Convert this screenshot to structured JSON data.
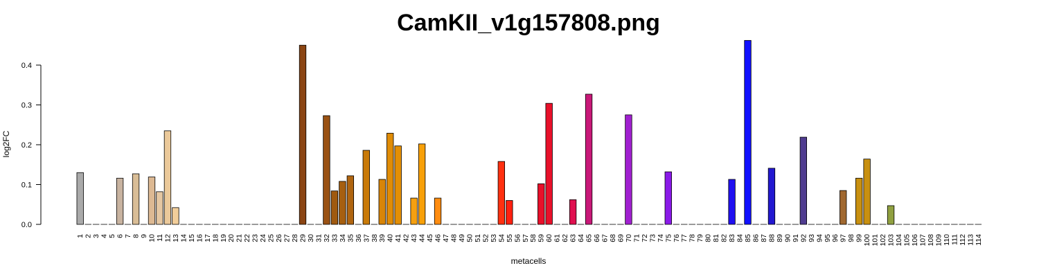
{
  "chart_data": {
    "type": "bar",
    "title": "CamKII_v1g157808.png",
    "xlabel": "metacells",
    "ylabel": "log2FC",
    "ylim": [
      0,
      0.46
    ],
    "yticks": [
      0.0,
      0.1,
      0.2,
      0.3,
      0.4
    ],
    "ytick_labels": [
      "0.0",
      "0.1",
      "0.2",
      "0.3",
      "0.4"
    ],
    "grid": false,
    "legend": "none",
    "categories": [
      "1",
      "2",
      "3",
      "4",
      "5",
      "6",
      "7",
      "8",
      "9",
      "10",
      "11",
      "12",
      "13",
      "14",
      "15",
      "16",
      "17",
      "18",
      "19",
      "20",
      "21",
      "22",
      "23",
      "24",
      "25",
      "26",
      "27",
      "28",
      "29",
      "30",
      "31",
      "32",
      "33",
      "34",
      "35",
      "36",
      "37",
      "38",
      "39",
      "40",
      "41",
      "42",
      "43",
      "44",
      "45",
      "46",
      "47",
      "48",
      "49",
      "50",
      "51",
      "52",
      "53",
      "54",
      "55",
      "56",
      "57",
      "58",
      "59",
      "60",
      "61",
      "62",
      "63",
      "64",
      "65",
      "66",
      "67",
      "68",
      "69",
      "70",
      "71",
      "72",
      "73",
      "74",
      "75",
      "76",
      "77",
      "78",
      "79",
      "80",
      "81",
      "82",
      "83",
      "84",
      "85",
      "86",
      "87",
      "88",
      "89",
      "90",
      "91",
      "92",
      "93",
      "94",
      "95",
      "96",
      "97",
      "98",
      "99",
      "100",
      "101",
      "102",
      "103",
      "104",
      "105",
      "106",
      "107",
      "108",
      "109",
      "110",
      "111",
      "112",
      "113",
      "114"
    ],
    "values": [
      0.13,
      0,
      0,
      0,
      0,
      0.116,
      0,
      0.127,
      0,
      0.119,
      0.082,
      0.235,
      0.042,
      0,
      0,
      0,
      0,
      0,
      0,
      0,
      0,
      0,
      0,
      0,
      0,
      0,
      0,
      0,
      0.45,
      0,
      0,
      0.273,
      0.084,
      0.108,
      0.122,
      0,
      0.186,
      0,
      0.113,
      0.229,
      0.197,
      0,
      0.066,
      0.202,
      0,
      0.066,
      0,
      0,
      0,
      0,
      0,
      0,
      0,
      0.158,
      0.06,
      0,
      0,
      0,
      0.102,
      0.304,
      0,
      0,
      0.062,
      0,
      0.327,
      0,
      0,
      0,
      0,
      0.275,
      0,
      0,
      0,
      0,
      0.132,
      0,
      0,
      0,
      0,
      0,
      0,
      0,
      0.113,
      0,
      0.462,
      0,
      0,
      0.141,
      0,
      0,
      0,
      0.219,
      0,
      0,
      0,
      0,
      0.085,
      0,
      0.116,
      0.164,
      0,
      0,
      0.047,
      0,
      0,
      0,
      0,
      0,
      0,
      0,
      0,
      0,
      0,
      0
    ],
    "colors": [
      "#AAAAAA",
      "#AAAAAA",
      "#AAAAAA",
      "#AAAAAA",
      "#AAAAAA",
      "#C8B3A0",
      "#C8B3A0",
      "#D9BD96",
      "#D9BD96",
      "#DDB993",
      "#E5C7A2",
      "#EBC99A",
      "#F2CE9A",
      "#F2CE9A",
      "#F2CE9A",
      "#F2CE9A",
      "#F2CE9A",
      "#F2CE9A",
      "#F2CE9A",
      "#F2CE9A",
      "#F2CE9A",
      "#F2CE9A",
      "#F2CE9A",
      "#F2CE9A",
      "#F2CE9A",
      "#F2CE9A",
      "#F2CE9A",
      "#8B4513",
      "#8B4513",
      "#8B4513",
      "#8B4513",
      "#9A5214",
      "#A05A10",
      "#A65F10",
      "#B06510",
      "#C27008",
      "#C97A08",
      "#D88508",
      "#D88508",
      "#E08C06",
      "#E38F05",
      "#F09B05",
      "#F5A010",
      "#F8A008",
      "#F8A008",
      "#FF8C10",
      "#FF8C10",
      "#FF8C10",
      "#FF8C10",
      "#FF8C10",
      "#FF8C10",
      "#FF8C10",
      "#FF4010",
      "#FF3010",
      "#FF2010",
      "#FF2010",
      "#FF2010",
      "#E8102A",
      "#E8102A",
      "#E8102A",
      "#E8102A",
      "#E01050",
      "#E01050",
      "#C81878",
      "#C81878",
      "#C81878",
      "#C81878",
      "#C81878",
      "#A020D0",
      "#A020D0",
      "#A020D0",
      "#A020D0",
      "#A020D0",
      "#8A1AE8",
      "#8A1AE8",
      "#8A1AE8",
      "#8A1AE8",
      "#8A1AE8",
      "#8A1AE8",
      "#8A1AE8",
      "#8A1AE8",
      "#2010F0",
      "#2010F0",
      "#1010FF",
      "#1010FF",
      "#1010FF",
      "#2218D0",
      "#2218D0",
      "#2218D0",
      "#2218D0",
      "#503C90",
      "#503C90",
      "#503C90",
      "#503C90",
      "#503C90",
      "#A06830",
      "#A06830",
      "#C08830",
      "#C89010",
      "#C89010",
      "#C89010",
      "#90A040",
      "#90A040",
      "#90A040",
      "#90A040",
      "#90A040",
      "#90A040",
      "#90A040",
      "#90A040",
      "#90A040",
      "#90A040",
      "#90A040",
      "#90A040",
      "#90A040"
    ]
  }
}
